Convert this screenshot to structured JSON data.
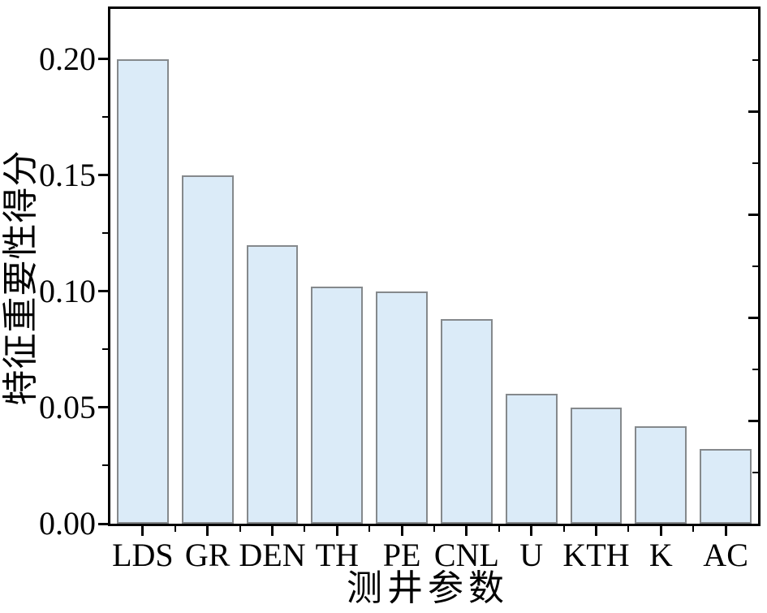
{
  "figure": {
    "background": "#ffffff",
    "axis_color": "#000000",
    "text_color": "#000000"
  },
  "chart_data": {
    "type": "bar",
    "title": "",
    "xlabel": "测井参数",
    "ylabel": "特征重要性得分",
    "categories": [
      "LDS",
      "GR",
      "DEN",
      "TH",
      "PE",
      "CNL",
      "U",
      "KTH",
      "K",
      "AC"
    ],
    "values": [
      0.2,
      0.15,
      0.12,
      0.102,
      0.1,
      0.088,
      0.056,
      0.05,
      0.042,
      0.032
    ],
    "ylim": [
      0,
      0.2215
    ],
    "yticks_major": [
      0.0,
      0.05,
      0.1,
      0.15,
      0.2
    ],
    "ytick_labels": [
      "0.00",
      "0.05",
      "0.10",
      "0.15",
      "0.20"
    ],
    "yticks_minor": [
      0.025,
      0.075,
      0.125,
      0.175
    ],
    "right_axis": {
      "lim": [
        0,
        0.25
      ],
      "ticks_major": [
        0.05,
        0.1,
        0.15,
        0.2
      ],
      "ticks_minor": [
        0.025,
        0.075,
        0.125,
        0.175,
        0.225
      ]
    },
    "grid": false,
    "legend": null,
    "bar_fill": "#dbebf8",
    "bar_border": "#85898c",
    "bar_width_fraction": 0.8
  }
}
